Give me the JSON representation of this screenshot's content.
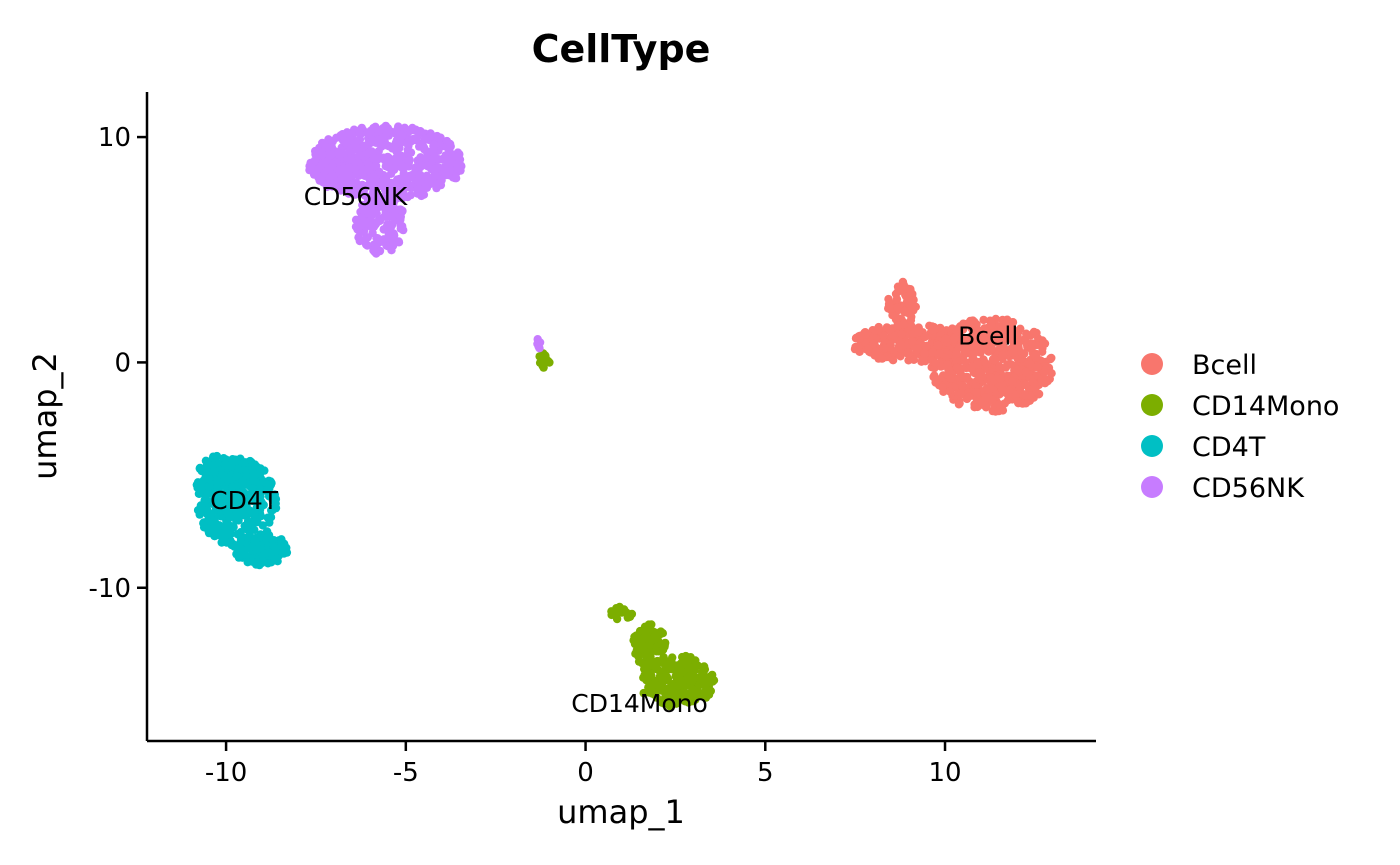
{
  "chart_data": {
    "type": "scatter",
    "title": "CellType",
    "xlabel": "umap_1",
    "ylabel": "umap_2",
    "xlim": [
      -12.2,
      14.2
    ],
    "ylim": [
      -16.8,
      12.0
    ],
    "xticks": [
      -10,
      -5,
      0,
      5,
      10
    ],
    "yticks": [
      -10,
      0,
      10
    ],
    "xtick_labels": [
      "-10",
      "-5",
      "0",
      "5",
      "10"
    ],
    "ytick_labels": [
      "-10",
      "0",
      "10"
    ],
    "grid": false,
    "legend_position": "right",
    "series": [
      {
        "name": "Bcell",
        "color": "#F8766D",
        "centroid": [
          11.2,
          1.1
        ],
        "label": "Bcell",
        "regions": [
          {
            "x": [
              7.4,
              10.5
            ],
            "y": [
              0.0,
              1.7
            ]
          },
          {
            "x": [
              9.6,
              13.0
            ],
            "y": [
              -2.2,
              2.0
            ]
          },
          {
            "x": [
              8.4,
              9.2
            ],
            "y": [
              1.6,
              3.6
            ]
          }
        ]
      },
      {
        "name": "CD14Mono",
        "color": "#7CAE00",
        "centroid": [
          1.5,
          -15.2
        ],
        "label": "CD14Mono",
        "regions": [
          {
            "x": [
              1.5,
              3.6
            ],
            "y": [
              -15.3,
              -13.0
            ]
          },
          {
            "x": [
              0.7,
              1.3
            ],
            "y": [
              -11.5,
              -10.8
            ]
          },
          {
            "x": [
              1.3,
              2.3
            ],
            "y": [
              -13.5,
              -11.6
            ]
          },
          {
            "x": [
              -1.3,
              -1.0
            ],
            "y": [
              -0.4,
              0.5
            ]
          }
        ]
      },
      {
        "name": "CD4T",
        "color": "#00BFC4",
        "centroid": [
          -9.5,
          -6.2
        ],
        "label": "CD4T",
        "regions": [
          {
            "x": [
              -10.8,
              -8.6
            ],
            "y": [
              -8.3,
              -4.2
            ]
          },
          {
            "x": [
              -9.8,
              -8.2
            ],
            "y": [
              -9.0,
              -7.6
            ]
          },
          {
            "x": [
              -10.9,
              -9.2
            ],
            "y": [
              -6.5,
              -4.1
            ]
          }
        ]
      },
      {
        "name": "CD56NK",
        "color": "#C77CFF",
        "centroid": [
          -6.4,
          7.3
        ],
        "label": "CD56NK",
        "regions": [
          {
            "x": [
              -7.7,
              -3.4
            ],
            "y": [
              7.2,
              10.5
            ]
          },
          {
            "x": [
              -6.4,
              -5.0
            ],
            "y": [
              4.8,
              7.4
            ]
          },
          {
            "x": [
              -7.7,
              -6.4
            ],
            "y": [
              7.8,
              9.4
            ]
          },
          {
            "x": [
              -1.4,
              -1.2
            ],
            "y": [
              0.6,
              1.1
            ]
          }
        ]
      }
    ]
  }
}
